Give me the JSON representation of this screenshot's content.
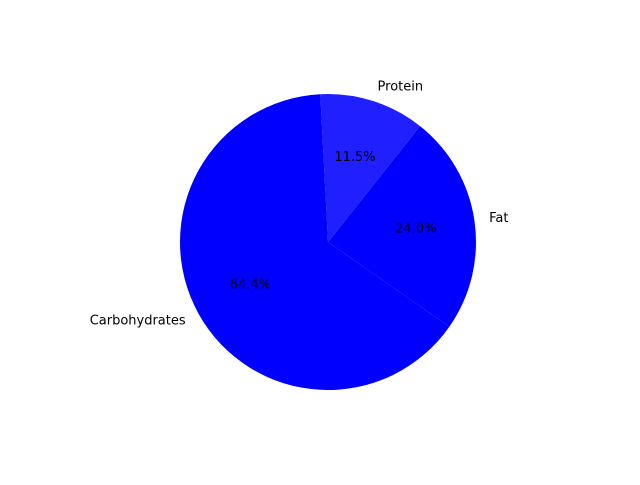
{
  "chart_data": {
    "type": "pie",
    "categories": [
      "Carbohydrates",
      "Fat",
      "Protein"
    ],
    "values": [
      64.4,
      24.0,
      11.5
    ],
    "value_labels": [
      "64.4%",
      "24.0%",
      "11.5%"
    ],
    "colors": [
      "#0000ff",
      "#0000ff",
      "#1f1fff"
    ],
    "title": "",
    "legend": false
  }
}
